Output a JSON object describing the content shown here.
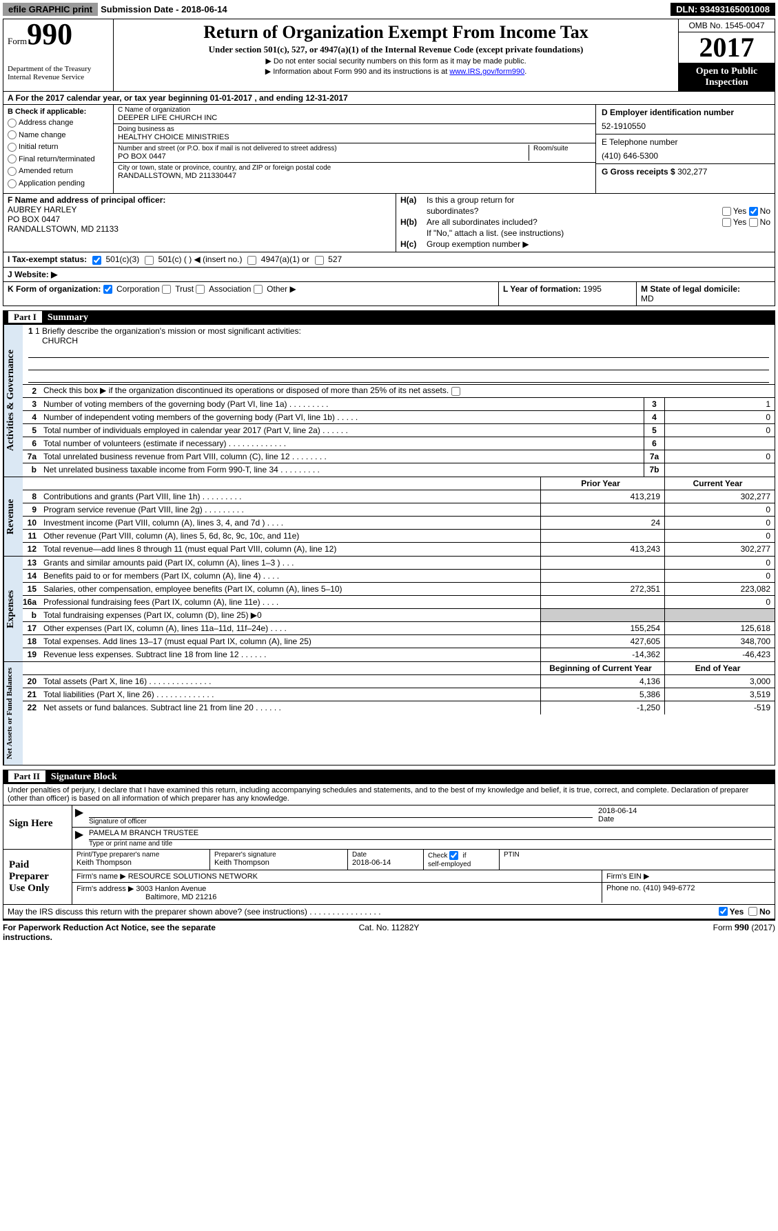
{
  "topbar": {
    "efile": "efile GRAPHIC print",
    "sub_label": "Submission Date - ",
    "sub_date": "2018-06-14",
    "dln": "DLN: 93493165001008"
  },
  "header": {
    "form_word": "Form",
    "form_num": "990",
    "dept1": "Department of the Treasury",
    "dept2": "Internal Revenue Service",
    "title": "Return of Organization Exempt From Income Tax",
    "sub": "Under section 501(c), 527, or 4947(a)(1) of the Internal Revenue Code (except private foundations)",
    "note1": "▶ Do not enter social security numbers on this form as it may be made public.",
    "note2": "▶ Information about Form 990 and its instructions is at ",
    "link": "www.IRS.gov/form990",
    "omb": "OMB No. 1545-0047",
    "year": "2017",
    "inspect1": "Open to Public",
    "inspect2": "Inspection"
  },
  "A": {
    "text": "A  For the 2017 calendar year, or tax year beginning 01-01-2017   , and ending 12-31-2017"
  },
  "B": {
    "hdr": "B Check if applicable:",
    "items": [
      "Address change",
      "Name change",
      "Initial return",
      "Final return/terminated",
      "Amended return",
      "Application pending"
    ]
  },
  "C": {
    "name_lbl": "C Name of organization",
    "name_val": "DEEPER LIFE CHURCH INC",
    "dba_lbl": "Doing business as",
    "dba_val": "HEALTHY CHOICE MINISTRIES",
    "street_lbl": "Number and street (or P.O. box if mail is not delivered to street address)",
    "room_lbl": "Room/suite",
    "street_val": "PO BOX 0447",
    "city_lbl": "City or town, state or province, country, and ZIP or foreign postal code",
    "city_val": "RANDALLSTOWN, MD  211330447"
  },
  "D": {
    "lbl": "D Employer identification number",
    "val": "52-1910550"
  },
  "E": {
    "lbl": "E Telephone number",
    "val": "(410) 646-5300"
  },
  "G": {
    "lbl": "G Gross receipts $ ",
    "val": "302,277"
  },
  "F": {
    "lbl": "F  Name and address of principal officer:",
    "l1": "AUBREY HARLEY",
    "l2": "PO BOX 0447",
    "l3": "RANDALLSTOWN, MD  21133"
  },
  "H": {
    "a_tag": "H(a)",
    "a_txt": "Is this a group return for",
    "a_txt2": "subordinates?",
    "b_tag": "H(b)",
    "b_txt": "Are all subordinates included?",
    "b_note": "If \"No,\" attach a list. (see instructions)",
    "c_tag": "H(c)",
    "c_txt": "Group exemption number ▶",
    "yes": "Yes",
    "no": "No"
  },
  "I": {
    "lbl": "I  Tax-exempt status:",
    "opt1": "501(c)(3)",
    "opt2": "501(c) (   ) ◀ (insert no.)",
    "opt3": "4947(a)(1) or",
    "opt4": "527"
  },
  "J": {
    "lbl": "J  Website: ▶"
  },
  "K": {
    "lbl": "K Form of organization:",
    "o1": "Corporation",
    "o2": "Trust",
    "o3": "Association",
    "o4": "Other ▶"
  },
  "L": {
    "lbl": "L Year of formation: ",
    "val": "1995"
  },
  "M": {
    "lbl": "M State of legal domicile:",
    "val": "MD"
  },
  "part1": {
    "tag": "Part I",
    "title": "Summary"
  },
  "gov": {
    "tab": "Activities & Governance",
    "l1_lbl": "1 Briefly describe the organization's mission or most significant activities:",
    "l1_val": "CHURCH",
    "l2": "Check this box ▶      if the organization discontinued its operations or disposed of more than 25% of its net assets.",
    "rows": [
      {
        "n": "3",
        "d": "Number of voting members of the governing body (Part VI, line 1a)   .   .   .   .   .   .   .   .   .",
        "c": "3",
        "v": "1"
      },
      {
        "n": "4",
        "d": "Number of independent voting members of the governing body (Part VI, line 1b)   .   .   .   .   .",
        "c": "4",
        "v": "0"
      },
      {
        "n": "5",
        "d": "Total number of individuals employed in calendar year 2017 (Part V, line 2a)   .   .   .   .   .   .",
        "c": "5",
        "v": "0"
      },
      {
        "n": "6",
        "d": "Total number of volunteers (estimate if necessary)   .   .   .   .   .   .   .   .   .   .   .   .   .",
        "c": "6",
        "v": ""
      },
      {
        "n": "7a",
        "d": "Total unrelated business revenue from Part VIII, column (C), line 12   .   .   .   .   .   .   .   .",
        "c": "7a",
        "v": "0"
      },
      {
        "n": "b",
        "d": "Net unrelated business taxable income from Form 990-T, line 34   .   .   .   .   .   .   .   .   .",
        "c": "7b",
        "v": ""
      }
    ]
  },
  "rev": {
    "tab": "Revenue",
    "h1": "Prior Year",
    "h2": "Current Year",
    "rows": [
      {
        "n": "8",
        "d": "Contributions and grants (Part VIII, line 1h)   .   .   .   .   .   .   .   .   .",
        "v1": "413,219",
        "v2": "302,277"
      },
      {
        "n": "9",
        "d": "Program service revenue (Part VIII, line 2g)   .   .   .   .   .   .   .   .   .",
        "v1": "",
        "v2": "0"
      },
      {
        "n": "10",
        "d": "Investment income (Part VIII, column (A), lines 3, 4, and 7d )   .   .   .   .",
        "v1": "24",
        "v2": "0"
      },
      {
        "n": "11",
        "d": "Other revenue (Part VIII, column (A), lines 5, 6d, 8c, 9c, 10c, and 11e)",
        "v1": "",
        "v2": "0"
      },
      {
        "n": "12",
        "d": "Total revenue—add lines 8 through 11 (must equal Part VIII, column (A), line 12)",
        "v1": "413,243",
        "v2": "302,277"
      }
    ]
  },
  "exp": {
    "tab": "Expenses",
    "rows": [
      {
        "n": "13",
        "d": "Grants and similar amounts paid (Part IX, column (A), lines 1–3 )   .   .   .",
        "v1": "",
        "v2": "0"
      },
      {
        "n": "14",
        "d": "Benefits paid to or for members (Part IX, column (A), line 4)   .   .   .   .",
        "v1": "",
        "v2": "0"
      },
      {
        "n": "15",
        "d": "Salaries, other compensation, employee benefits (Part IX, column (A), lines 5–10)",
        "v1": "272,351",
        "v2": "223,082"
      },
      {
        "n": "16a",
        "d": "Professional fundraising fees (Part IX, column (A), line 11e)   .   .   .   .",
        "v1": "",
        "v2": "0"
      },
      {
        "n": "b",
        "d": "Total fundraising expenses (Part IX, column (D), line 25) ▶0",
        "v1": "shade",
        "v2": "shade"
      },
      {
        "n": "17",
        "d": "Other expenses (Part IX, column (A), lines 11a–11d, 11f–24e)   .   .   .   .",
        "v1": "155,254",
        "v2": "125,618"
      },
      {
        "n": "18",
        "d": "Total expenses. Add lines 13–17 (must equal Part IX, column (A), line 25)",
        "v1": "427,605",
        "v2": "348,700"
      },
      {
        "n": "19",
        "d": "Revenue less expenses. Subtract line 18 from line 12   .   .   .   .   .   .",
        "v1": "-14,362",
        "v2": "-46,423"
      }
    ]
  },
  "net": {
    "tab": "Net Assets or Fund Balances",
    "h1": "Beginning of Current Year",
    "h2": "End of Year",
    "rows": [
      {
        "n": "20",
        "d": "Total assets (Part X, line 16)   .   .   .   .   .   .   .   .   .   .   .   .   .   .",
        "v1": "4,136",
        "v2": "3,000"
      },
      {
        "n": "21",
        "d": "Total liabilities (Part X, line 26)   .   .   .   .   .   .   .   .   .   .   .   .   .",
        "v1": "5,386",
        "v2": "3,519"
      },
      {
        "n": "22",
        "d": "Net assets or fund balances. Subtract line 21 from line 20 .   .   .   .   .   .",
        "v1": "-1,250",
        "v2": "-519"
      }
    ]
  },
  "part2": {
    "tag": "Part II",
    "title": "Signature Block"
  },
  "sig": {
    "intro": "Under penalties of perjury, I declare that I have examined this return, including accompanying schedules and statements, and to the best of my knowledge and belief, it is true, correct, and complete. Declaration of preparer (other than officer) is based  on all information of which preparer has any knowledge.",
    "here": "Sign Here",
    "sig_lbl": "Signature of officer",
    "date_lbl": "Date",
    "sig_date": "2018-06-14",
    "name_val": "PAMELA M BRANCH TRUSTEE",
    "name_lbl": "Type or print name and title"
  },
  "prep": {
    "left": "Paid Preparer Use Only",
    "r1c1_lbl": "Print/Type preparer's name",
    "r1c1_val": "Keith Thompson",
    "r1c2_lbl": "Preparer's signature",
    "r1c2_val": "Keith Thompson",
    "r1c3_lbl": "Date",
    "r1c3_val": "2018-06-14",
    "r1c4_lbl1": "Check",
    "r1c4_lbl2": "if",
    "r1c4_lbl3": "self-employed",
    "r1c5_lbl": "PTIN",
    "r2_lbl": "Firm's name      ▶ ",
    "r2_val": "RESOURCE SOLUTIONS NETWORK",
    "r2_ein": "Firm's EIN ▶",
    "r3_lbl": "Firm's address ▶ ",
    "r3_val1": "3003 Hanlon Avenue",
    "r3_val2": "Baltimore, MD  21216",
    "r3_phone": "Phone no. (410) 949-6772"
  },
  "discuss": {
    "txt": "May the IRS discuss this return with the preparer shown above? (see instructions)   .   .   .   .   .   .   .   .   .   .   .   .   .   .   .   .",
    "yes": "Yes",
    "no": "No"
  },
  "footer": {
    "l": "For Paperwork Reduction Act Notice, see the separate instructions.",
    "c": "Cat. No. 11282Y",
    "r1": "Form ",
    "r2": "990",
    "r3": " (2017)"
  }
}
